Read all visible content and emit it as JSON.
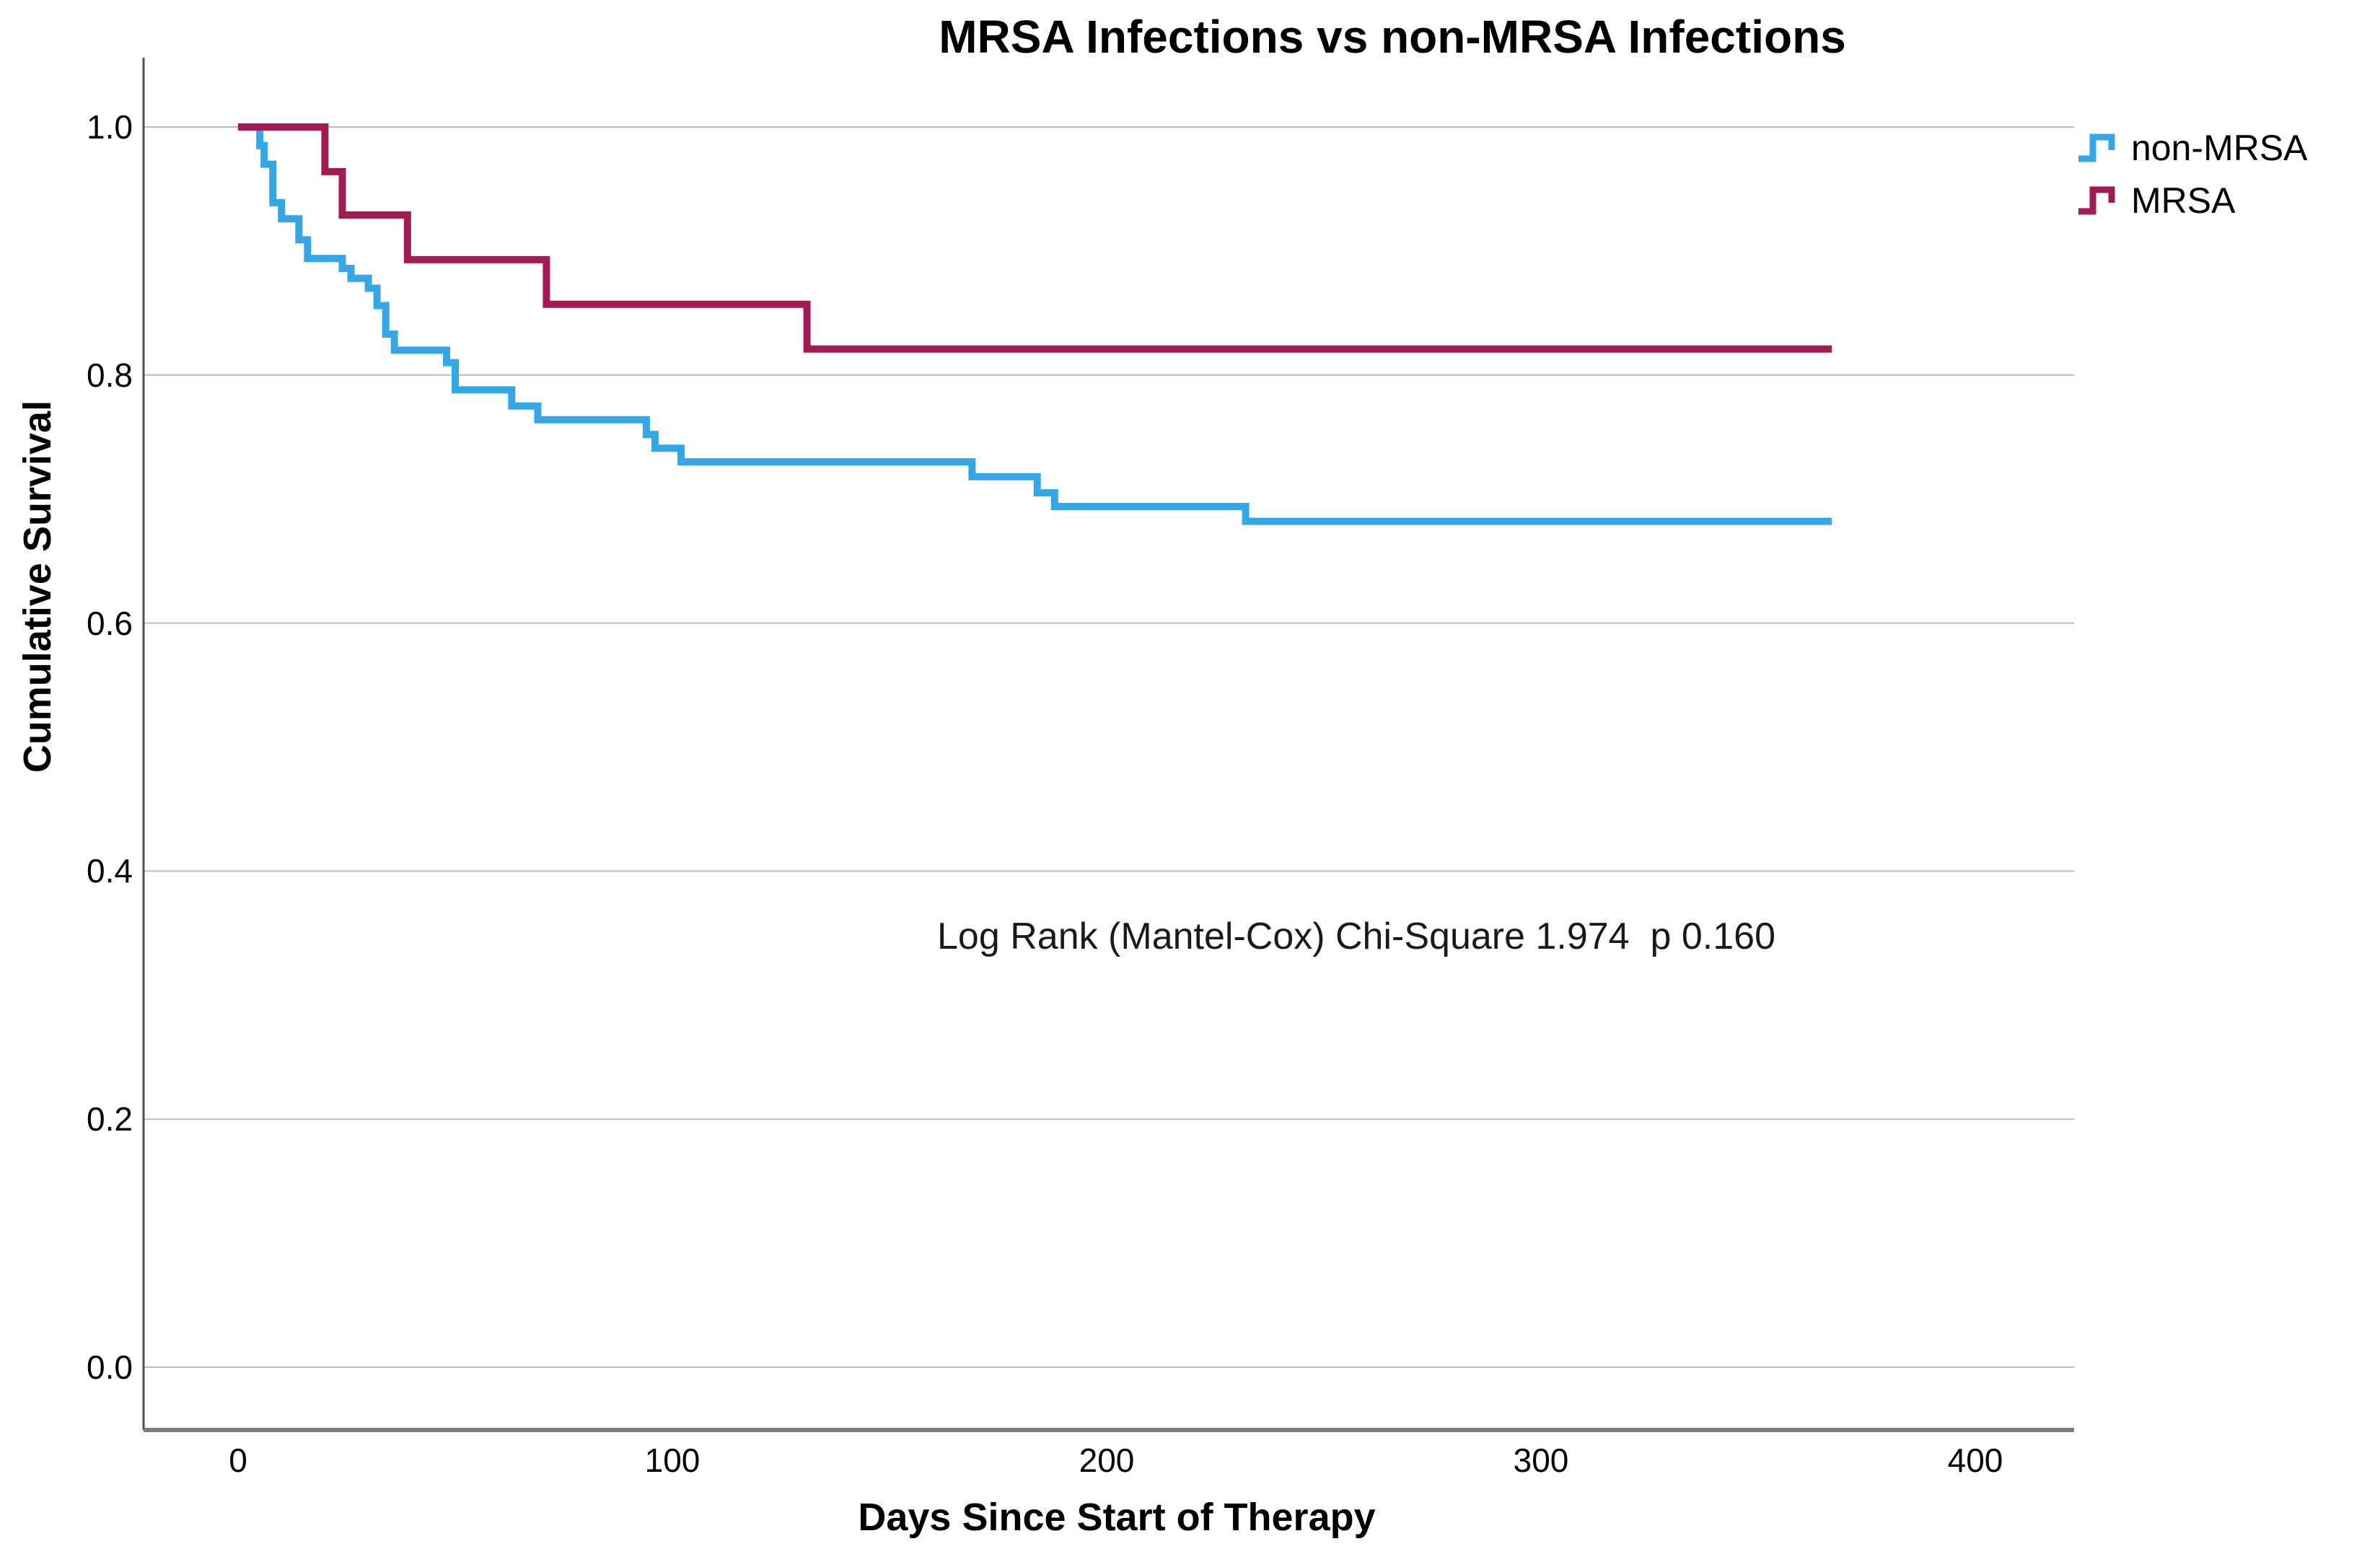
{
  "chart_data": {
    "type": "line",
    "subtype": "kaplan_meier_step",
    "title": "MRSA Infections vs non-MRSA Infections",
    "xlabel": "Days Since Start of Therapy",
    "ylabel": "Cumulative Survival",
    "annotation": "Log Rank (Mantel-Cox) Chi-Square 1.974  p 0.160",
    "stats": {
      "test": "Log Rank (Mantel-Cox)",
      "chi_square": "1.974",
      "p": "0.160"
    },
    "grid": "horizontal",
    "legend_position": "top-right-outside",
    "x_axis": {
      "ticks": [
        {
          "label": "0",
          "value": 0
        },
        {
          "label": "100",
          "value": 100
        },
        {
          "label": "200",
          "value": 200
        },
        {
          "label": "300",
          "value": 300
        },
        {
          "label": "400",
          "value": 400
        }
      ],
      "range_days": [
        0,
        400
      ]
    },
    "y_axis": {
      "ticks": [
        {
          "label": "1.0",
          "value": 1.0
        },
        {
          "label": "0.8",
          "value": 0.8
        },
        {
          "label": "0.6",
          "value": 0.6
        },
        {
          "label": "0.4",
          "value": 0.4
        },
        {
          "label": "0.2",
          "value": 0.2
        },
        {
          "label": "0.0",
          "value": 0.0
        }
      ],
      "range": [
        0.0,
        1.0
      ]
    },
    "series": [
      {
        "name": "non-MRSA",
        "color": "#36A7E6",
        "points": [
          [
            0,
            1.0
          ],
          [
            5,
            0.985
          ],
          [
            6,
            0.97
          ],
          [
            8,
            0.939
          ],
          [
            10,
            0.926
          ],
          [
            14,
            0.909
          ],
          [
            16,
            0.894
          ],
          [
            24,
            0.886
          ],
          [
            26,
            0.878
          ],
          [
            30,
            0.87
          ],
          [
            32,
            0.856
          ],
          [
            34,
            0.833
          ],
          [
            36,
            0.82
          ],
          [
            48,
            0.81
          ],
          [
            50,
            0.788
          ],
          [
            63,
            0.775
          ],
          [
            69,
            0.764
          ],
          [
            94,
            0.752
          ],
          [
            96,
            0.741
          ],
          [
            102,
            0.73
          ],
          [
            169,
            0.718
          ],
          [
            184,
            0.705
          ],
          [
            188,
            0.694
          ],
          [
            232,
            0.682
          ],
          [
            367,
            0.682
          ]
        ]
      },
      {
        "name": "MRSA",
        "color": "#A21B55",
        "points": [
          [
            0,
            1.0
          ],
          [
            20,
            0.964
          ],
          [
            24,
            0.929
          ],
          [
            39,
            0.893
          ],
          [
            71,
            0.857
          ],
          [
            131,
            0.821
          ],
          [
            367,
            0.821
          ]
        ]
      }
    ],
    "colors": {
      "gridline": "#BCBCBC",
      "y_axis_line": "#4D4D4D",
      "x_axis_line": "#7D7D7D"
    }
  }
}
